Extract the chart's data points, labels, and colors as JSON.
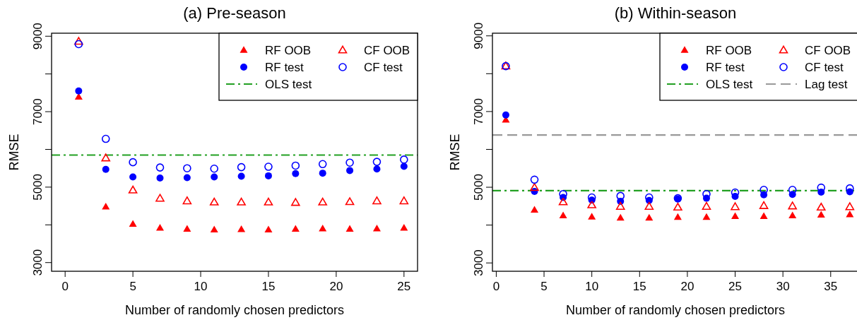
{
  "chart_data": [
    {
      "type": "scatter",
      "title": "(a) Pre-season",
      "xlabel": "Number of randomly chosen predictors",
      "ylabel": "RMSE",
      "xlim": [
        -1,
        26
      ],
      "xticks": [
        0,
        5,
        10,
        15,
        20,
        25
      ],
      "ylim": [
        2770,
        9080
      ],
      "yticks": [
        {
          "value": 3000,
          "label": "3000"
        },
        {
          "value": 4000,
          "label": null
        },
        {
          "value": 5000,
          "label": "5000"
        },
        {
          "value": 6000,
          "label": null
        },
        {
          "value": 7000,
          "label": "7000"
        },
        {
          "value": 8000,
          "label": null
        },
        {
          "value": 9000,
          "label": "9000"
        }
      ],
      "legend": "top right",
      "x": [
        1,
        3,
        5,
        7,
        9,
        11,
        13,
        15,
        17,
        19,
        21,
        23,
        25
      ],
      "series": [
        {
          "name": "RF OOB",
          "color": "#ff0000",
          "marker": "triangle",
          "values": [
            7390,
            4480,
            4020,
            3920,
            3890,
            3870,
            3880,
            3870,
            3890,
            3900,
            3890,
            3900,
            3920
          ]
        },
        {
          "name": "RF test",
          "color": "#0000ff",
          "marker": "circle",
          "values": [
            7550,
            5470,
            5270,
            5240,
            5250,
            5270,
            5290,
            5300,
            5360,
            5370,
            5440,
            5480,
            5550
          ]
        },
        {
          "name": "CF OOB",
          "color": "#ff0000",
          "marker": "triangle",
          "values": [
            8860,
            5770,
            4920,
            4700,
            4630,
            4600,
            4600,
            4600,
            4590,
            4600,
            4610,
            4630,
            4630
          ]
        },
        {
          "name": "CF test",
          "color": "#0000ff",
          "marker": "circle",
          "values": [
            8790,
            6280,
            5660,
            5520,
            5500,
            5490,
            5530,
            5540,
            5570,
            5610,
            5650,
            5670,
            5730
          ]
        }
      ],
      "ref_lines": [
        {
          "axis": "y",
          "value": 5850,
          "label": "OLS test",
          "color": "#22a022",
          "line_style": "dashdot"
        }
      ]
    },
    {
      "type": "scatter",
      "title": "(b) Within-season",
      "xlabel": "Number of randomly chosen predictors",
      "ylabel": "RMSE",
      "xlim": [
        -0.4,
        37.9
      ],
      "xticks": [
        0,
        5,
        10,
        15,
        20,
        25,
        30,
        35
      ],
      "ylim": [
        2780,
        9070
      ],
      "yticks": [
        {
          "value": 3000,
          "label": "3000"
        },
        {
          "value": 4000,
          "label": null
        },
        {
          "value": 5000,
          "label": "5000"
        },
        {
          "value": 6000,
          "label": null
        },
        {
          "value": 7000,
          "label": "7000"
        },
        {
          "value": 8000,
          "label": null
        },
        {
          "value": 9000,
          "label": "9000"
        }
      ],
      "legend": "top right",
      "x": [
        1,
        4,
        7,
        10,
        13,
        16,
        19,
        22,
        25,
        28,
        31,
        34,
        37
      ],
      "series": [
        {
          "name": "RF OOB",
          "color": "#ff0000",
          "marker": "triangle",
          "values": [
            6780,
            4400,
            4250,
            4220,
            4190,
            4190,
            4210,
            4210,
            4230,
            4230,
            4250,
            4270,
            4280
          ]
        },
        {
          "name": "RF test",
          "color": "#0000ff",
          "marker": "circle",
          "values": [
            6910,
            4890,
            4730,
            4660,
            4630,
            4650,
            4690,
            4710,
            4760,
            4800,
            4810,
            4870,
            4880
          ]
        },
        {
          "name": "CF OOB",
          "color": "#ff0000",
          "marker": "triangle",
          "values": [
            8200,
            4990,
            4610,
            4530,
            4490,
            4490,
            4470,
            4490,
            4480,
            4510,
            4500,
            4470,
            4480
          ]
        },
        {
          "name": "CF test",
          "color": "#0000ff",
          "marker": "circle",
          "values": [
            8200,
            5200,
            4820,
            4730,
            4770,
            4730,
            4710,
            4820,
            4860,
            4930,
            4930,
            4990,
            4970
          ]
        }
      ],
      "ref_lines": [
        {
          "axis": "y",
          "value": 4910,
          "label": "OLS test",
          "color": "#22a022",
          "line_style": "dashdot"
        },
        {
          "axis": "y",
          "value": 6380,
          "label": "Lag test",
          "color": "#999999",
          "line_style": "dashed"
        }
      ]
    }
  ]
}
